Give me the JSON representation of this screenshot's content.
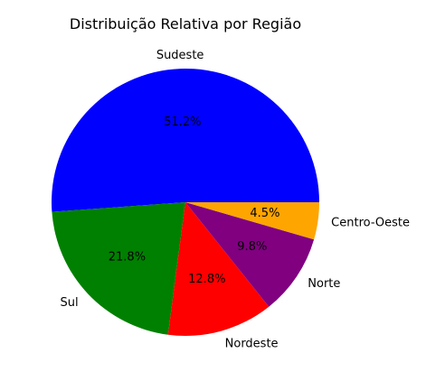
{
  "chart_data": {
    "type": "pie",
    "title": "Distribuição Relativa por Região",
    "start_angle_deg": 0,
    "direction": "counterclockwise",
    "slices": [
      {
        "label": "Sudeste",
        "value": 51.2,
        "pct_label": "51.2%",
        "color": "#0000ff"
      },
      {
        "label": "Sul",
        "value": 21.8,
        "pct_label": "21.8%",
        "color": "#008000"
      },
      {
        "label": "Nordeste",
        "value": 12.8,
        "pct_label": "12.8%",
        "color": "#ff0000"
      },
      {
        "label": "Norte",
        "value": 9.8,
        "pct_label": "9.8%",
        "color": "#800080"
      },
      {
        "label": "Centro-Oeste",
        "value": 4.5,
        "pct_label": "4.5%",
        "color": "#ffa500"
      }
    ]
  }
}
